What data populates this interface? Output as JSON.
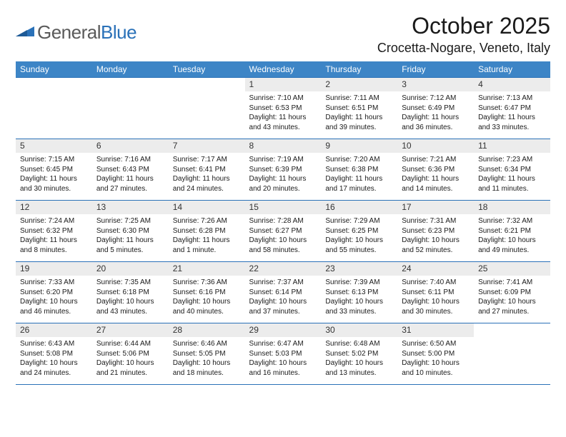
{
  "logo": {
    "word1": "General",
    "word2": "Blue"
  },
  "title": "October 2025",
  "location": "Crocetta-Nogare, Veneto, Italy",
  "colors": {
    "header_bg": "#3d85c6",
    "header_fg": "#ffffff",
    "rule": "#2a71b8",
    "daynum_bg": "#ececec",
    "logo_gray": "#5a5a5a",
    "logo_blue": "#2a71b8"
  },
  "weekdays": [
    "Sunday",
    "Monday",
    "Tuesday",
    "Wednesday",
    "Thursday",
    "Friday",
    "Saturday"
  ],
  "weeks": [
    [
      {
        "n": "",
        "sr": "",
        "ss": "",
        "dl": ""
      },
      {
        "n": "",
        "sr": "",
        "ss": "",
        "dl": ""
      },
      {
        "n": "",
        "sr": "",
        "ss": "",
        "dl": ""
      },
      {
        "n": "1",
        "sr": "Sunrise: 7:10 AM",
        "ss": "Sunset: 6:53 PM",
        "dl": "Daylight: 11 hours and 43 minutes."
      },
      {
        "n": "2",
        "sr": "Sunrise: 7:11 AM",
        "ss": "Sunset: 6:51 PM",
        "dl": "Daylight: 11 hours and 39 minutes."
      },
      {
        "n": "3",
        "sr": "Sunrise: 7:12 AM",
        "ss": "Sunset: 6:49 PM",
        "dl": "Daylight: 11 hours and 36 minutes."
      },
      {
        "n": "4",
        "sr": "Sunrise: 7:13 AM",
        "ss": "Sunset: 6:47 PM",
        "dl": "Daylight: 11 hours and 33 minutes."
      }
    ],
    [
      {
        "n": "5",
        "sr": "Sunrise: 7:15 AM",
        "ss": "Sunset: 6:45 PM",
        "dl": "Daylight: 11 hours and 30 minutes."
      },
      {
        "n": "6",
        "sr": "Sunrise: 7:16 AM",
        "ss": "Sunset: 6:43 PM",
        "dl": "Daylight: 11 hours and 27 minutes."
      },
      {
        "n": "7",
        "sr": "Sunrise: 7:17 AM",
        "ss": "Sunset: 6:41 PM",
        "dl": "Daylight: 11 hours and 24 minutes."
      },
      {
        "n": "8",
        "sr": "Sunrise: 7:19 AM",
        "ss": "Sunset: 6:39 PM",
        "dl": "Daylight: 11 hours and 20 minutes."
      },
      {
        "n": "9",
        "sr": "Sunrise: 7:20 AM",
        "ss": "Sunset: 6:38 PM",
        "dl": "Daylight: 11 hours and 17 minutes."
      },
      {
        "n": "10",
        "sr": "Sunrise: 7:21 AM",
        "ss": "Sunset: 6:36 PM",
        "dl": "Daylight: 11 hours and 14 minutes."
      },
      {
        "n": "11",
        "sr": "Sunrise: 7:23 AM",
        "ss": "Sunset: 6:34 PM",
        "dl": "Daylight: 11 hours and 11 minutes."
      }
    ],
    [
      {
        "n": "12",
        "sr": "Sunrise: 7:24 AM",
        "ss": "Sunset: 6:32 PM",
        "dl": "Daylight: 11 hours and 8 minutes."
      },
      {
        "n": "13",
        "sr": "Sunrise: 7:25 AM",
        "ss": "Sunset: 6:30 PM",
        "dl": "Daylight: 11 hours and 5 minutes."
      },
      {
        "n": "14",
        "sr": "Sunrise: 7:26 AM",
        "ss": "Sunset: 6:28 PM",
        "dl": "Daylight: 11 hours and 1 minute."
      },
      {
        "n": "15",
        "sr": "Sunrise: 7:28 AM",
        "ss": "Sunset: 6:27 PM",
        "dl": "Daylight: 10 hours and 58 minutes."
      },
      {
        "n": "16",
        "sr": "Sunrise: 7:29 AM",
        "ss": "Sunset: 6:25 PM",
        "dl": "Daylight: 10 hours and 55 minutes."
      },
      {
        "n": "17",
        "sr": "Sunrise: 7:31 AM",
        "ss": "Sunset: 6:23 PM",
        "dl": "Daylight: 10 hours and 52 minutes."
      },
      {
        "n": "18",
        "sr": "Sunrise: 7:32 AM",
        "ss": "Sunset: 6:21 PM",
        "dl": "Daylight: 10 hours and 49 minutes."
      }
    ],
    [
      {
        "n": "19",
        "sr": "Sunrise: 7:33 AM",
        "ss": "Sunset: 6:20 PM",
        "dl": "Daylight: 10 hours and 46 minutes."
      },
      {
        "n": "20",
        "sr": "Sunrise: 7:35 AM",
        "ss": "Sunset: 6:18 PM",
        "dl": "Daylight: 10 hours and 43 minutes."
      },
      {
        "n": "21",
        "sr": "Sunrise: 7:36 AM",
        "ss": "Sunset: 6:16 PM",
        "dl": "Daylight: 10 hours and 40 minutes."
      },
      {
        "n": "22",
        "sr": "Sunrise: 7:37 AM",
        "ss": "Sunset: 6:14 PM",
        "dl": "Daylight: 10 hours and 37 minutes."
      },
      {
        "n": "23",
        "sr": "Sunrise: 7:39 AM",
        "ss": "Sunset: 6:13 PM",
        "dl": "Daylight: 10 hours and 33 minutes."
      },
      {
        "n": "24",
        "sr": "Sunrise: 7:40 AM",
        "ss": "Sunset: 6:11 PM",
        "dl": "Daylight: 10 hours and 30 minutes."
      },
      {
        "n": "25",
        "sr": "Sunrise: 7:41 AM",
        "ss": "Sunset: 6:09 PM",
        "dl": "Daylight: 10 hours and 27 minutes."
      }
    ],
    [
      {
        "n": "26",
        "sr": "Sunrise: 6:43 AM",
        "ss": "Sunset: 5:08 PM",
        "dl": "Daylight: 10 hours and 24 minutes."
      },
      {
        "n": "27",
        "sr": "Sunrise: 6:44 AM",
        "ss": "Sunset: 5:06 PM",
        "dl": "Daylight: 10 hours and 21 minutes."
      },
      {
        "n": "28",
        "sr": "Sunrise: 6:46 AM",
        "ss": "Sunset: 5:05 PM",
        "dl": "Daylight: 10 hours and 18 minutes."
      },
      {
        "n": "29",
        "sr": "Sunrise: 6:47 AM",
        "ss": "Sunset: 5:03 PM",
        "dl": "Daylight: 10 hours and 16 minutes."
      },
      {
        "n": "30",
        "sr": "Sunrise: 6:48 AM",
        "ss": "Sunset: 5:02 PM",
        "dl": "Daylight: 10 hours and 13 minutes."
      },
      {
        "n": "31",
        "sr": "Sunrise: 6:50 AM",
        "ss": "Sunset: 5:00 PM",
        "dl": "Daylight: 10 hours and 10 minutes."
      },
      {
        "n": "",
        "sr": "",
        "ss": "",
        "dl": ""
      }
    ]
  ]
}
